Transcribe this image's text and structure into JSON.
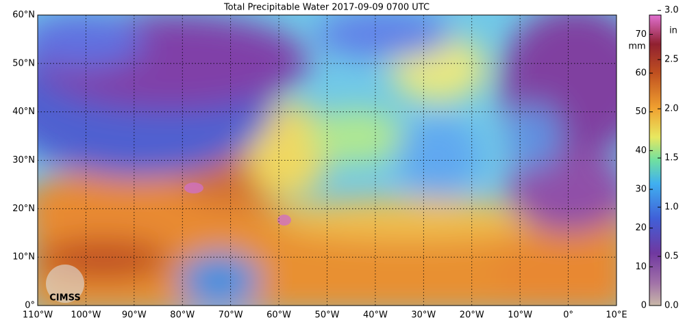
{
  "title": "Total Precipitable Water  2017-09-09 0700 UTC",
  "latitude_labels": [
    "60°N",
    "50°N",
    "40°N",
    "30°N",
    "20°N",
    "10°N",
    "0°"
  ],
  "longitude_labels": [
    "110°W",
    "100°W",
    "90°W",
    "80°W",
    "70°W",
    "60°W",
    "50°W",
    "40°W",
    "30°W",
    "20°W",
    "10°W",
    "0°",
    "10°E"
  ],
  "logo": "CIMSS",
  "colorbar": {
    "mm_unit": "mm",
    "in_unit": "in",
    "mm_lim": [
      0,
      75
    ],
    "mm_ticks": [
      0,
      10,
      20,
      30,
      40,
      50,
      60,
      70
    ],
    "in_lim": [
      0,
      2.953
    ],
    "in_ticks": [
      {
        "value": 0,
        "label": "0.0"
      },
      {
        "value": 0.5,
        "label": "0.5"
      },
      {
        "value": 1,
        "label": "1.0"
      },
      {
        "value": 1.5,
        "label": "1.5"
      },
      {
        "value": 2,
        "label": "2.0"
      },
      {
        "value": 2.5,
        "label": "2.5"
      },
      {
        "value": 3,
        "label": "3.0"
      }
    ]
  }
}
